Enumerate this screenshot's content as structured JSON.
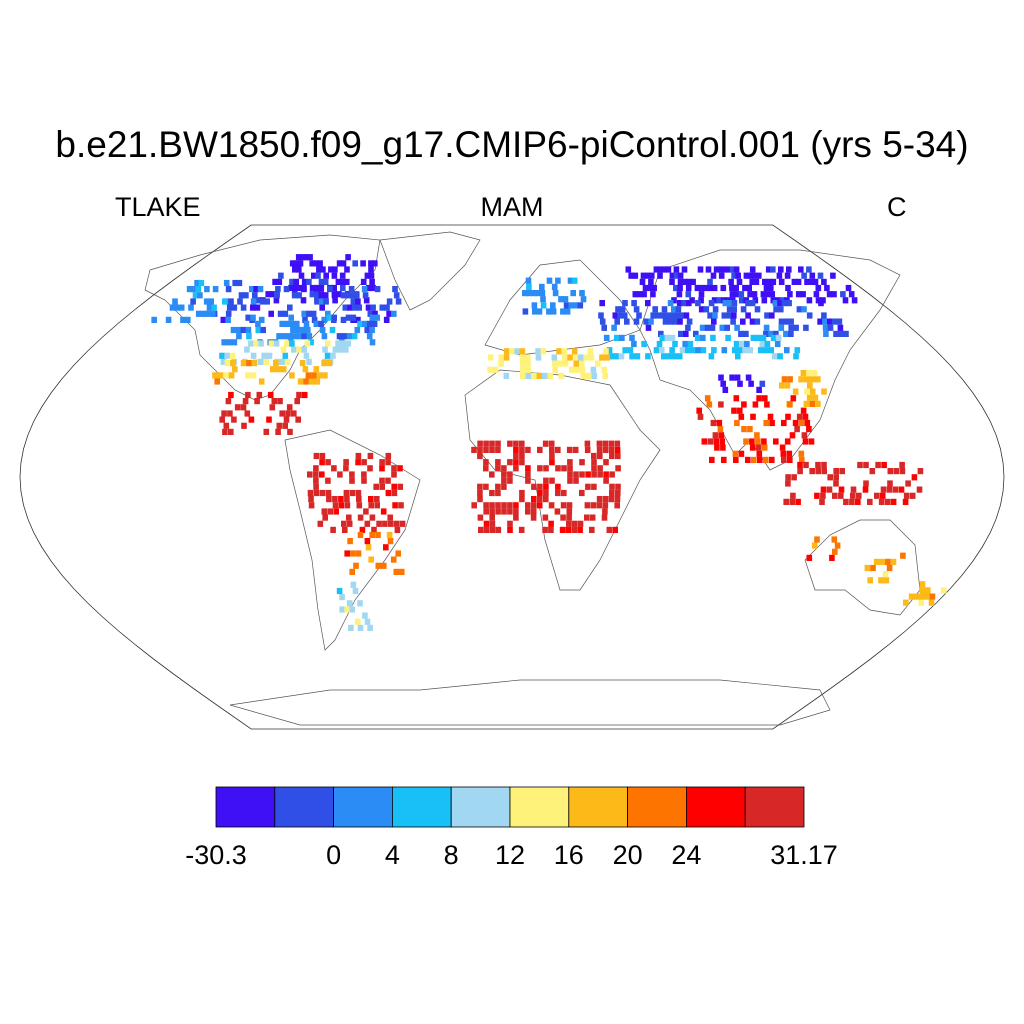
{
  "title": "b.e21.BW1850.f09_g17.CMIP6-piControl.001 (yrs 5-34)",
  "variable": "TLAKE",
  "season": "MAM",
  "units": "C",
  "colorbar": {
    "colors": [
      "#3f0ff5",
      "#304fe7",
      "#2a8cf4",
      "#19c0f7",
      "#a2d7f2",
      "#fff27a",
      "#fcb918",
      "#fd7500",
      "#ff0000",
      "#d82727"
    ],
    "labels": [
      "-30.3",
      "0",
      "4",
      "8",
      "12",
      "16",
      "20",
      "24",
      "31.17"
    ],
    "label_boundary_index": [
      0,
      2,
      3,
      4,
      5,
      6,
      7,
      8,
      10
    ]
  },
  "map_data": {
    "projection": "robinson",
    "lakes": [
      {
        "region": "arctic-canada",
        "lon": [
          -125,
          -70
        ],
        "lat": [
          62,
          78
        ],
        "bin": 0
      },
      {
        "region": "canada-north",
        "lon": [
          -140,
          -55
        ],
        "lat": [
          55,
          68
        ],
        "bin": 1
      },
      {
        "region": "alaska",
        "lon": [
          -165,
          -140
        ],
        "lat": [
          55,
          70
        ],
        "bin": 2
      },
      {
        "region": "canada-south",
        "lon": [
          -125,
          -60
        ],
        "lat": [
          47,
          56
        ],
        "bin": 2
      },
      {
        "region": "us-north",
        "lon": [
          -122,
          -70
        ],
        "lat": [
          40,
          47
        ],
        "bin": 4
      },
      {
        "region": "us-central",
        "lon": [
          -120,
          -75
        ],
        "lat": [
          33,
          40
        ],
        "bin": 6
      },
      {
        "region": "mexico-gulf",
        "lon": [
          -110,
          -80
        ],
        "lat": [
          15,
          30
        ],
        "bin": 9
      },
      {
        "region": "amazon",
        "lon": [
          -75,
          -40
        ],
        "lat": [
          -20,
          8
        ],
        "bin": 9
      },
      {
        "region": "south-america-mid",
        "lon": [
          -65,
          -45
        ],
        "lat": [
          -35,
          -20
        ],
        "bin": 7
      },
      {
        "region": "patagonia",
        "lon": [
          -75,
          -65
        ],
        "lat": [
          -55,
          -38
        ],
        "bin": 4
      },
      {
        "region": "scandinavia",
        "lon": [
          5,
          35
        ],
        "lat": [
          58,
          70
        ],
        "bin": 2
      },
      {
        "region": "siberia-north",
        "lon": [
          60,
          170
        ],
        "lat": [
          62,
          75
        ],
        "bin": 0
      },
      {
        "region": "siberia",
        "lon": [
          40,
          150
        ],
        "lat": [
          50,
          62
        ],
        "bin": 1
      },
      {
        "region": "central-asia",
        "lon": [
          40,
          120
        ],
        "lat": [
          42,
          50
        ],
        "bin": 3
      },
      {
        "region": "mediterranean",
        "lon": [
          -10,
          40
        ],
        "lat": [
          35,
          45
        ],
        "bin": 5
      },
      {
        "region": "tibet",
        "lon": [
          80,
          100
        ],
        "lat": [
          30,
          36
        ],
        "bin": 0
      },
      {
        "region": "china-east",
        "lon": [
          105,
          122
        ],
        "lat": [
          25,
          38
        ],
        "bin": 6
      },
      {
        "region": "india-seasia",
        "lon": [
          70,
          110
        ],
        "lat": [
          5,
          28
        ],
        "bin": 8
      },
      {
        "region": "africa-tropics",
        "lon": [
          -15,
          40
        ],
        "lat": [
          -20,
          12
        ],
        "bin": 9
      },
      {
        "region": "maritime-continent",
        "lon": [
          100,
          150
        ],
        "lat": [
          -10,
          5
        ],
        "bin": 9
      },
      {
        "region": "australia-west",
        "lon": [
          115,
          125
        ],
        "lat": [
          -30,
          -22
        ],
        "bin": 7
      },
      {
        "region": "australia-east",
        "lon": [
          140,
          153
        ],
        "lat": [
          -38,
          -28
        ],
        "bin": 6
      },
      {
        "region": "new-zealand",
        "lon": [
          167,
          178
        ],
        "lat": [
          -46,
          -38
        ],
        "bin": 6
      }
    ]
  }
}
